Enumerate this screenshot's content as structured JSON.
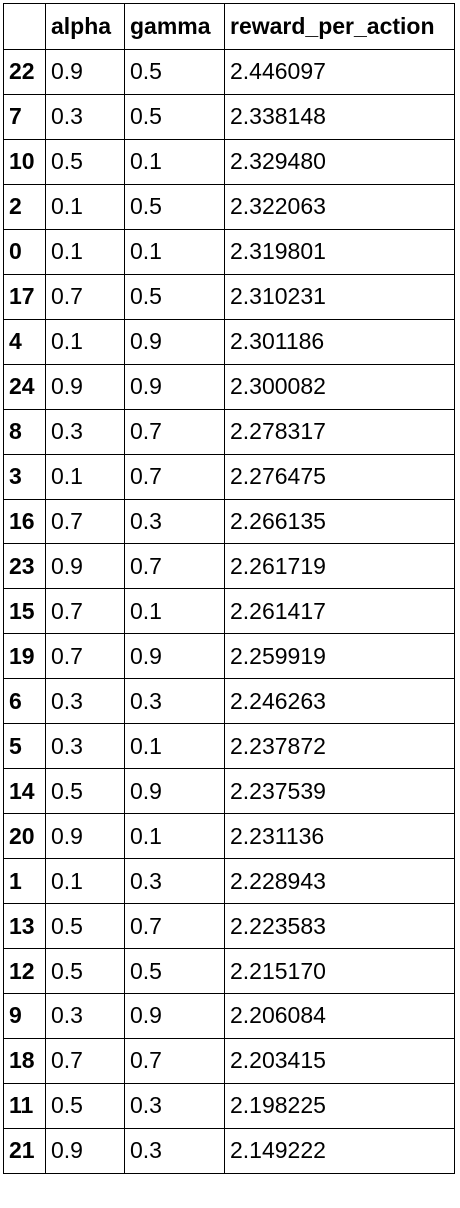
{
  "table": {
    "columns": [
      "",
      "alpha",
      "gamma",
      "reward_per_action"
    ],
    "rows": [
      {
        "index": "22",
        "alpha": "0.9",
        "gamma": "0.5",
        "reward_per_action": "2.446097"
      },
      {
        "index": "7",
        "alpha": "0.3",
        "gamma": "0.5",
        "reward_per_action": "2.338148"
      },
      {
        "index": "10",
        "alpha": "0.5",
        "gamma": "0.1",
        "reward_per_action": "2.329480"
      },
      {
        "index": "2",
        "alpha": "0.1",
        "gamma": "0.5",
        "reward_per_action": "2.322063"
      },
      {
        "index": "0",
        "alpha": "0.1",
        "gamma": "0.1",
        "reward_per_action": "2.319801"
      },
      {
        "index": "17",
        "alpha": "0.7",
        "gamma": "0.5",
        "reward_per_action": "2.310231"
      },
      {
        "index": "4",
        "alpha": "0.1",
        "gamma": "0.9",
        "reward_per_action": "2.301186"
      },
      {
        "index": "24",
        "alpha": "0.9",
        "gamma": "0.9",
        "reward_per_action": "2.300082"
      },
      {
        "index": "8",
        "alpha": "0.3",
        "gamma": "0.7",
        "reward_per_action": "2.278317"
      },
      {
        "index": "3",
        "alpha": "0.1",
        "gamma": "0.7",
        "reward_per_action": "2.276475"
      },
      {
        "index": "16",
        "alpha": "0.7",
        "gamma": "0.3",
        "reward_per_action": "2.266135"
      },
      {
        "index": "23",
        "alpha": "0.9",
        "gamma": "0.7",
        "reward_per_action": "2.261719"
      },
      {
        "index": "15",
        "alpha": "0.7",
        "gamma": "0.1",
        "reward_per_action": "2.261417"
      },
      {
        "index": "19",
        "alpha": "0.7",
        "gamma": "0.9",
        "reward_per_action": "2.259919"
      },
      {
        "index": "6",
        "alpha": "0.3",
        "gamma": "0.3",
        "reward_per_action": "2.246263"
      },
      {
        "index": "5",
        "alpha": "0.3",
        "gamma": "0.1",
        "reward_per_action": "2.237872"
      },
      {
        "index": "14",
        "alpha": "0.5",
        "gamma": "0.9",
        "reward_per_action": "2.237539"
      },
      {
        "index": "20",
        "alpha": "0.9",
        "gamma": "0.1",
        "reward_per_action": "2.231136"
      },
      {
        "index": "1",
        "alpha": "0.1",
        "gamma": "0.3",
        "reward_per_action": "2.228943"
      },
      {
        "index": "13",
        "alpha": "0.5",
        "gamma": "0.7",
        "reward_per_action": "2.223583"
      },
      {
        "index": "12",
        "alpha": "0.5",
        "gamma": "0.5",
        "reward_per_action": "2.215170"
      },
      {
        "index": "9",
        "alpha": "0.3",
        "gamma": "0.9",
        "reward_per_action": "2.206084"
      },
      {
        "index": "18",
        "alpha": "0.7",
        "gamma": "0.7",
        "reward_per_action": "2.203415"
      },
      {
        "index": "11",
        "alpha": "0.5",
        "gamma": "0.3",
        "reward_per_action": "2.198225"
      },
      {
        "index": "21",
        "alpha": "0.9",
        "gamma": "0.3",
        "reward_per_action": "2.149222"
      }
    ]
  }
}
